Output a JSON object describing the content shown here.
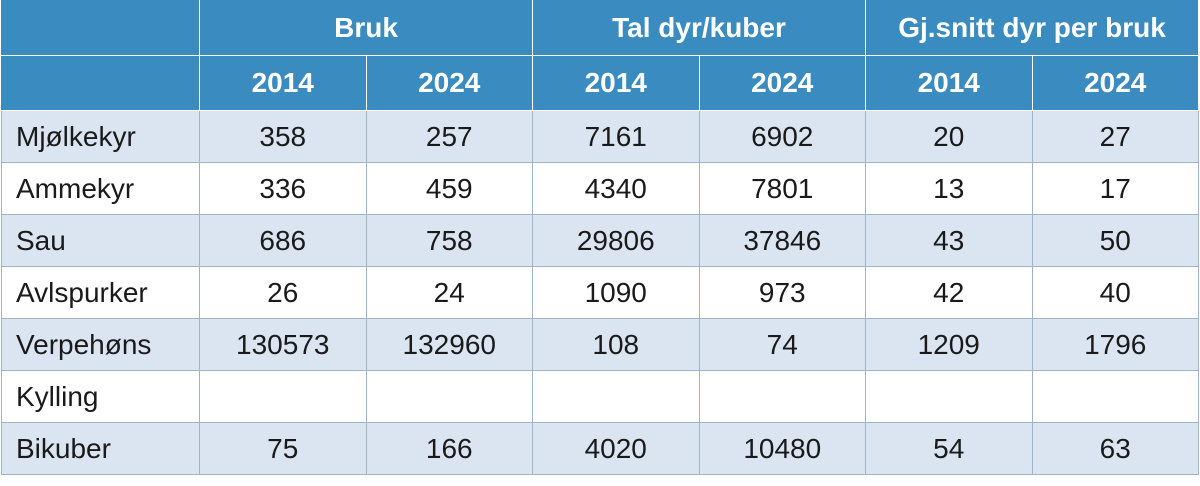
{
  "table": {
    "header": {
      "groups": [
        "Bruk",
        "Tal dyr/kuber",
        "Gj.snitt dyr per bruk"
      ],
      "years": [
        "2014",
        "2024",
        "2014",
        "2024",
        "2014",
        "2024"
      ]
    },
    "rows": [
      {
        "label": "Mjølkekyr",
        "values": [
          358,
          257,
          7161,
          6902,
          20,
          27
        ]
      },
      {
        "label": "Ammekyr",
        "values": [
          336,
          459,
          4340,
          7801,
          13,
          17
        ]
      },
      {
        "label": "Sau",
        "values": [
          686,
          758,
          29806,
          37846,
          43,
          50
        ]
      },
      {
        "label": "Avlspurker",
        "values": [
          26,
          24,
          1090,
          973,
          42,
          40
        ]
      },
      {
        "label": "Verpehøns",
        "values": [
          130573,
          132960,
          108,
          74,
          1209,
          1796
        ]
      },
      {
        "label": "Kylling",
        "values": [
          null,
          null,
          null,
          null,
          null,
          null
        ]
      },
      {
        "label": "Bikuber",
        "values": [
          75,
          166,
          4020,
          10480,
          54,
          63
        ]
      }
    ]
  }
}
